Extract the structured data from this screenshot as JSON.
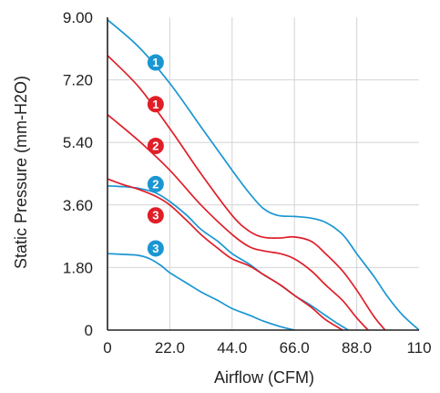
{
  "chart_data": {
    "type": "line",
    "title": "",
    "xlabel": "Airflow (CFM)",
    "ylabel": "Static Pressure (mm-H2O)",
    "xlim": [
      0,
      110
    ],
    "ylim": [
      0,
      9.0
    ],
    "xticks": [
      "0",
      "22.0",
      "44.0",
      "66.0",
      "88.0",
      "110"
    ],
    "yticks": [
      "0",
      "1.80",
      "3.60",
      "5.40",
      "7.20",
      "9.00"
    ],
    "grid": true,
    "colors": {
      "blue": "#1a96d2",
      "red": "#e01e28",
      "grid": "#d4d4d4",
      "axis": "#222222"
    },
    "series": [
      {
        "marker": "1",
        "color": "blue",
        "x": [
          0,
          11,
          22,
          33,
          44,
          50,
          55,
          60,
          66,
          72,
          77,
          83,
          88,
          94,
          99,
          104,
          110
        ],
        "y": [
          8.93,
          8.15,
          7.1,
          5.85,
          4.6,
          3.95,
          3.5,
          3.3,
          3.27,
          3.22,
          3.1,
          2.75,
          2.2,
          1.55,
          0.95,
          0.45,
          0
        ]
      },
      {
        "marker": "1",
        "color": "red",
        "x": [
          0,
          11,
          22,
          33,
          44,
          50,
          55,
          61,
          66,
          72,
          77,
          83,
          88,
          94,
          98
        ],
        "y": [
          7.9,
          7.0,
          5.8,
          4.5,
          3.3,
          2.85,
          2.67,
          2.65,
          2.68,
          2.55,
          2.2,
          1.7,
          1.15,
          0.4,
          0
        ]
      },
      {
        "marker": "2",
        "color": "red",
        "x": [
          0,
          11,
          22,
          33,
          44,
          50,
          55,
          61,
          66,
          72,
          77,
          83,
          88,
          92
        ],
        "y": [
          6.2,
          5.45,
          4.6,
          3.6,
          2.75,
          2.4,
          2.28,
          2.2,
          2.05,
          1.7,
          1.3,
          0.85,
          0.35,
          0
        ]
      },
      {
        "marker": "2",
        "color": "blue",
        "x": [
          0,
          5,
          11,
          17,
          22,
          28,
          33,
          39,
          44,
          50,
          55,
          61,
          66,
          72,
          77,
          81,
          85
        ],
        "y": [
          4.15,
          4.13,
          4.08,
          3.95,
          3.7,
          3.3,
          2.9,
          2.55,
          2.2,
          1.9,
          1.6,
          1.3,
          1.0,
          0.7,
          0.42,
          0.2,
          0
        ]
      },
      {
        "marker": "3",
        "color": "red",
        "x": [
          0,
          5,
          11,
          17,
          22,
          28,
          33,
          39,
          44,
          50,
          55,
          61,
          66,
          72,
          77,
          83
        ],
        "y": [
          4.35,
          4.2,
          4.05,
          3.85,
          3.6,
          3.15,
          2.75,
          2.35,
          2.05,
          1.85,
          1.6,
          1.3,
          1.0,
          0.65,
          0.3,
          0
        ]
      },
      {
        "marker": "3",
        "color": "blue",
        "x": [
          0,
          5,
          11,
          15,
          19,
          22,
          28,
          33,
          39,
          44,
          50,
          55,
          61,
          66
        ],
        "y": [
          2.2,
          2.18,
          2.15,
          2.05,
          1.85,
          1.65,
          1.35,
          1.1,
          0.85,
          0.62,
          0.43,
          0.26,
          0.1,
          0
        ]
      }
    ],
    "markers": [
      {
        "label": "1",
        "color": "blue",
        "x": 17,
        "y": 7.7
      },
      {
        "label": "1",
        "color": "red",
        "x": 17,
        "y": 6.5
      },
      {
        "label": "2",
        "color": "red",
        "x": 17,
        "y": 5.3
      },
      {
        "label": "2",
        "color": "blue",
        "x": 17,
        "y": 4.2
      },
      {
        "label": "3",
        "color": "red",
        "x": 17,
        "y": 3.3
      },
      {
        "label": "3",
        "color": "blue",
        "x": 17,
        "y": 2.35
      }
    ]
  }
}
